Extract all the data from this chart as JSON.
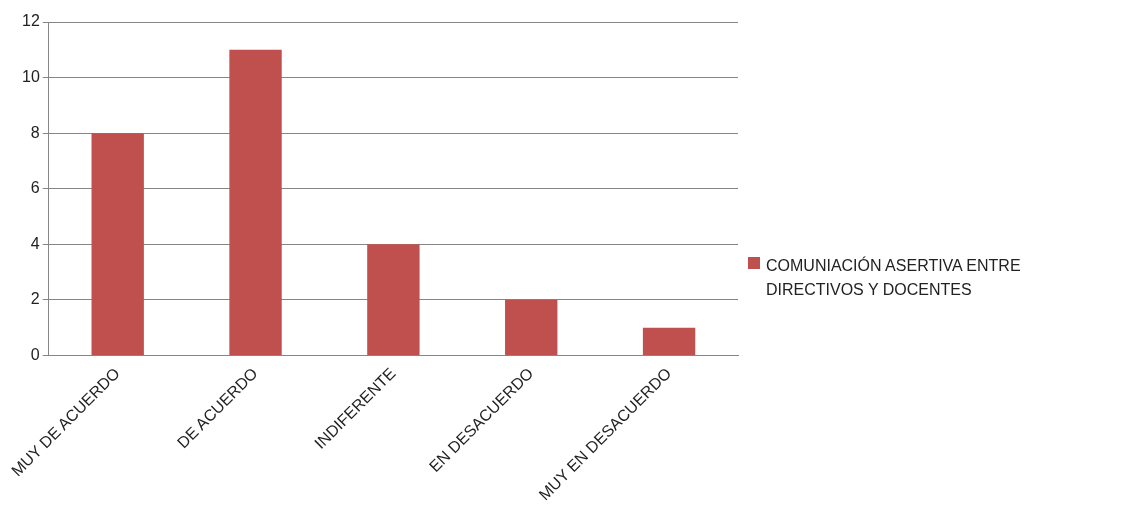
{
  "chart_data": {
    "type": "bar",
    "categories": [
      "MUY DE ACUERDO",
      "DE ACUERDO",
      "INDIFERENTE",
      "EN DESACUERDO",
      "MUY EN DESACUERDO"
    ],
    "series": [
      {
        "name": "COMUNIACIÓN ASERTIVA ENTRE DIRECTIVOS Y DOCENTES",
        "color": "#c0504d",
        "values": [
          8,
          11,
          4,
          2,
          1
        ]
      }
    ],
    "ylim": [
      0,
      12
    ],
    "yticks": [
      0,
      2,
      4,
      6,
      8,
      10,
      12
    ],
    "grid": "y",
    "legend": "right"
  }
}
